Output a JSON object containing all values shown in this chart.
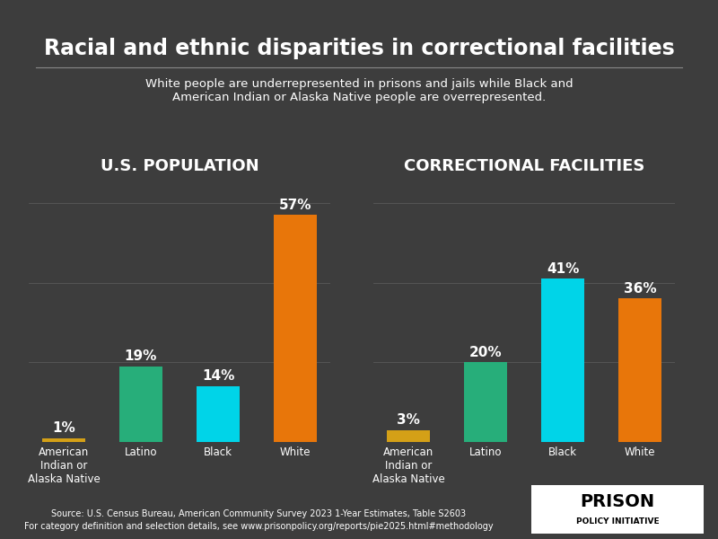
{
  "title": "Racial and ethnic disparities in correctional facilities",
  "subtitle": "White people are underrepresented in prisons and jails while Black and\nAmerican Indian or Alaska Native people are overrepresented.",
  "background_color": "#3d3d3d",
  "text_color": "#ffffff",
  "left_chart_title": "U.S. POPULATION",
  "right_chart_title": "CORRECTIONAL FACILITIES",
  "categories": [
    "American\nIndian or\nAlaska Native",
    "Latino",
    "Black",
    "White"
  ],
  "us_population": [
    1,
    19,
    14,
    57
  ],
  "correctional": [
    3,
    20,
    41,
    36
  ],
  "us_colors": [
    "#f5a623",
    "#2ecc8e",
    "#00e5ff",
    "#f5a623"
  ],
  "correctional_colors": [
    "#f5a623",
    "#2ecc8e",
    "#00e5ff",
    "#f5a623"
  ],
  "bar_colors_us": [
    "#e8a020",
    "#2ec88a",
    "#00ddee",
    "#f07800"
  ],
  "bar_colors_corr": [
    "#e8a020",
    "#2ec88a",
    "#00ddee",
    "#f07800"
  ],
  "ylim": [
    0,
    65
  ],
  "source_line1": "Source: U.S. Census Bureau, American Community Survey 2023 1-Year Estimates, Table S2603",
  "source_line2": "For category definition and selection details, see www.prisonpolicy.org/reports/pie2025.html#methodology",
  "logo_line1": "PRISON",
  "logo_line2": "POLICY INITIATIVE",
  "grid_color": "#555555"
}
